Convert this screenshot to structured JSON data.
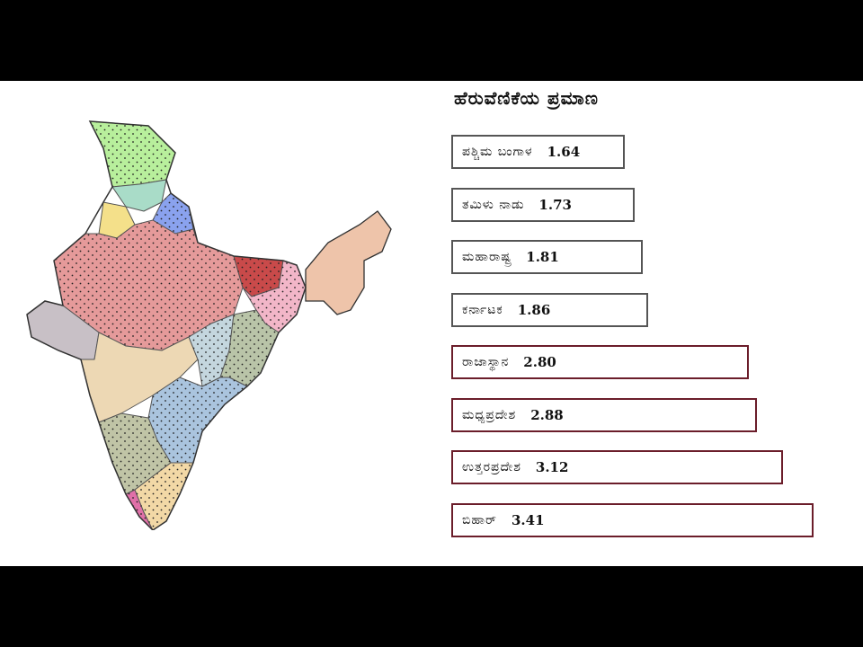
{
  "chart_data": {
    "type": "bar",
    "orientation": "horizontal",
    "title": "ಹೆರುವೆಣಿಕೆಯ ಪ್ರಮಾಣ",
    "categories": [
      "ಪಶ್ಚಿಮ ಬಂಗಾಳ",
      "ತಮಿಳು ನಾಡು",
      "ಮಹಾರಾಷ್ಟ್ರ",
      "ಕರ್ನಾಟಕ",
      "ರಾಜಾಸ್ಥಾನ",
      "ಮಧ್ಯಪ್ರದೇಶ",
      "ಉತ್ತರಪ್ರದೇಶ",
      "ಬಿಹಾರ್"
    ],
    "values": [
      1.64,
      1.73,
      1.81,
      1.86,
      2.8,
      2.88,
      3.12,
      3.41
    ],
    "value_labels": [
      "1.64",
      "1.73",
      "1.81",
      "1.86",
      "2.80",
      "2.88",
      "3.12",
      "3.41"
    ],
    "border_colors": [
      "#555555",
      "#555555",
      "#555555",
      "#555555",
      "#6b1d2a",
      "#6b1d2a",
      "#6b1d2a",
      "#6b1d2a"
    ]
  },
  "map": {
    "region_colors": {
      "kashmir": "#b8ef9c",
      "himachal": "#a9dcc8",
      "punjab": "#f4e08a",
      "uttarakhand": "#8aa2ee",
      "north_plains": "#e59a9a",
      "bihar": "#c94a4a",
      "west_bengal": "#f2b6c8",
      "gujarat": "#c8c0c6",
      "maharashtra": "#edd8b4",
      "chhattisgarh": "#c4d6de",
      "odisha": "#b9c4a8",
      "telangana_ap": "#aac4de",
      "karnataka": "#c0c4a6",
      "kerala": "#e070a8",
      "tamil_nadu": "#f2d8a6",
      "northeast": "#eec4aa"
    }
  }
}
